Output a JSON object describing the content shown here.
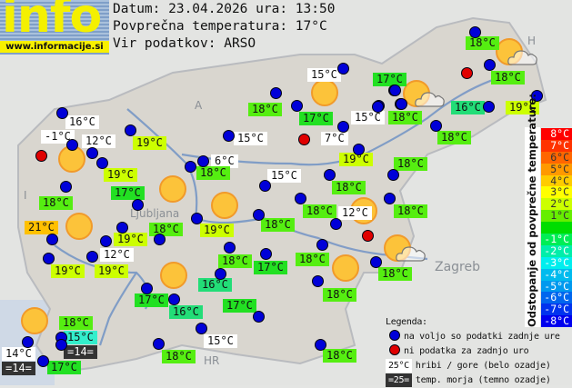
{
  "header": {
    "logo_text": "info",
    "logo_url": "www.informacije.si",
    "date_line": "Datum: 23.04.2026 ura: 13:50",
    "avg_line": "Povprečna temperatura: 17°C",
    "source_line": "Vir podatkov: ARSO"
  },
  "colors": {
    "station_ok": "#0000d8",
    "station_missing": "#e00000",
    "t15": "#33eecc",
    "t16": "#22dd77",
    "t17": "#22e022",
    "t18": "#55ee11",
    "t19": "#ccff00",
    "t21": "#ffc000",
    "mountain_bg": "#ffffff",
    "sea_bg": "#333333"
  },
  "map_labels": [
    "Ljubljana",
    "Zagreb",
    "A",
    "I",
    "HR",
    "H"
  ],
  "temperature_labels": [
    {
      "text": "16°C",
      "kind": "w"
    },
    {
      "text": "-1°C",
      "kind": "w"
    },
    {
      "text": "12°C",
      "kind": "w"
    },
    {
      "text": "19°C",
      "kind": "t19"
    },
    {
      "text": "19°C",
      "kind": "t19"
    },
    {
      "text": "17°C",
      "kind": "t17"
    },
    {
      "text": "18°C",
      "kind": "t18"
    },
    {
      "text": "21°C",
      "kind": "t21"
    },
    {
      "text": "19°C",
      "kind": "t19"
    },
    {
      "text": "18°C",
      "kind": "t18"
    },
    {
      "text": "12°C",
      "kind": "w"
    },
    {
      "text": "19°C",
      "kind": "t19"
    },
    {
      "text": "19°C",
      "kind": "t19"
    },
    {
      "text": "15°C",
      "kind": "w"
    },
    {
      "text": "17°C",
      "kind": "t17"
    },
    {
      "text": "18°C",
      "kind": "t18"
    },
    {
      "text": "17°C",
      "kind": "t17"
    },
    {
      "text": "15°C",
      "kind": "w"
    },
    {
      "text": "18°C",
      "kind": "t18"
    },
    {
      "text": "15°C",
      "kind": "w"
    },
    {
      "text": "7°C",
      "kind": "w"
    },
    {
      "text": "19°C",
      "kind": "t19"
    },
    {
      "text": "6°C",
      "kind": "w"
    },
    {
      "text": "18°C",
      "kind": "t18"
    },
    {
      "text": "15°C",
      "kind": "w"
    },
    {
      "text": "18°C",
      "kind": "t18"
    },
    {
      "text": "18°C",
      "kind": "t18"
    },
    {
      "text": "18°C",
      "kind": "t18"
    },
    {
      "text": "18°C",
      "kind": "t18"
    },
    {
      "text": "12°C",
      "kind": "w"
    },
    {
      "text": "18°C",
      "kind": "t18"
    },
    {
      "text": "19°C",
      "kind": "t19"
    },
    {
      "text": "18°C",
      "kind": "t18"
    },
    {
      "text": "17°C",
      "kind": "t17"
    },
    {
      "text": "18°C",
      "kind": "t18"
    },
    {
      "text": "18°C",
      "kind": "t18"
    },
    {
      "text": "16°C",
      "kind": "t16"
    },
    {
      "text": "17°C",
      "kind": "t17"
    },
    {
      "text": "16°C",
      "kind": "t16"
    },
    {
      "text": "17°C",
      "kind": "t17"
    },
    {
      "text": "18°C",
      "kind": "t18"
    },
    {
      "text": "18°C",
      "kind": "t18"
    },
    {
      "text": "15°C",
      "kind": "t15"
    },
    {
      "text": "=14=",
      "kind": "sea"
    },
    {
      "text": "14°C",
      "kind": "w"
    },
    {
      "text": "=14=",
      "kind": "sea"
    },
    {
      "text": "17°C",
      "kind": "t17"
    },
    {
      "text": "18°C",
      "kind": "t18"
    },
    {
      "text": "15°C",
      "kind": "w"
    },
    {
      "text": "18°C",
      "kind": "t18"
    },
    {
      "text": "18°C",
      "kind": "t18"
    },
    {
      "text": "18°C",
      "kind": "t18"
    },
    {
      "text": "16°C",
      "kind": "t16"
    },
    {
      "text": "19°C",
      "kind": "t19"
    },
    {
      "text": "18°C",
      "kind": "t18"
    }
  ],
  "stations": {
    "available_count": 66,
    "missing_count": 4
  },
  "scale": {
    "title": "Odstopanje od povprečne temperature:",
    "rows": [
      {
        "label": "8°C",
        "color": "#ff0000"
      },
      {
        "label": "7°C",
        "color": "#ff3300"
      },
      {
        "label": "6°C",
        "color": "#ff6600"
      },
      {
        "label": "5°C",
        "color": "#ff9900"
      },
      {
        "label": "4°C",
        "color": "#ffcc00"
      },
      {
        "label": "3°C",
        "color": "#ffff00"
      },
      {
        "label": "2°C",
        "color": "#ccff00"
      },
      {
        "label": "1°C",
        "color": "#66ee00"
      },
      {
        "label": "",
        "color": "#00dd00"
      },
      {
        "label": "-1°C",
        "color": "#00ee55"
      },
      {
        "label": "-2°C",
        "color": "#00eeaa"
      },
      {
        "label": "-3°C",
        "color": "#00eeee"
      },
      {
        "label": "-4°C",
        "color": "#00bbee"
      },
      {
        "label": "-5°C",
        "color": "#0099ee"
      },
      {
        "label": "-6°C",
        "color": "#0066ee"
      },
      {
        "label": "-7°C",
        "color": "#0033ee"
      },
      {
        "label": "-8°C",
        "color": "#0000ee"
      }
    ]
  },
  "legend": {
    "title": "Legenda:",
    "available": "na voljo so podatki zadnje ure",
    "missing": "ni podatka za zadnjo uro",
    "mountain_sample": "25°C",
    "mountain_text": "hribi / gore (belo ozadje)",
    "sea_sample": "=25=",
    "sea_text": "temp. morja (temno ozadje)"
  }
}
